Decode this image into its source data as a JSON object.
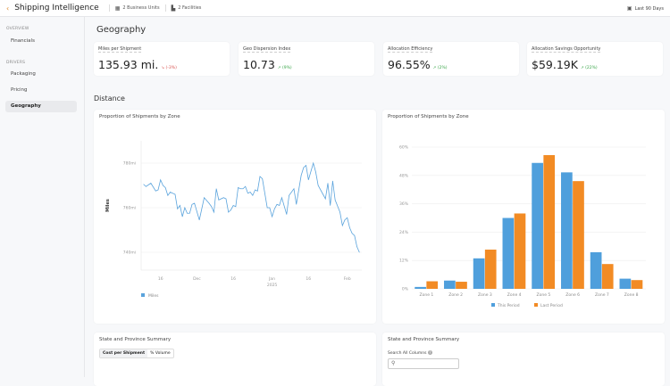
{
  "header": {
    "title": "Shipping Intelligence",
    "business_units": "2 Business Units",
    "facilities": "2 Facilities",
    "date_range": "Last 90 Days",
    "icons": {
      "back": "chevron-left-icon",
      "business": "building-icon",
      "facility": "factory-icon",
      "calendar": "calendar-icon"
    }
  },
  "sidebar": {
    "sections": [
      {
        "label": "OVERVIEW",
        "items": [
          {
            "label": "Financials"
          }
        ]
      },
      {
        "label": "DRIVERS",
        "items": [
          {
            "label": "Packaging"
          },
          {
            "label": "Pricing"
          },
          {
            "label": "Geography",
            "active": true
          }
        ]
      }
    ]
  },
  "page": {
    "title": "Geography",
    "distance_heading": "Distance"
  },
  "kpis": [
    {
      "label": "Miles per Shipment",
      "value": "135.93 mi.",
      "delta": "↘ (-3%)",
      "trend": "down",
      "color": "#d9534f"
    },
    {
      "label": "Geo Dispersion Index",
      "value": "10.73",
      "delta": "↗ (9%)",
      "trend": "up",
      "color": "#3aa64a"
    },
    {
      "label": "Allocation Efficiency",
      "value": "96.55%",
      "delta": "↗ (2%)",
      "trend": "up",
      "color": "#3aa64a"
    },
    {
      "label": "Allocation Savings Opportunity",
      "value": "$59.19K",
      "delta": "↗ (22%)",
      "trend": "up",
      "color": "#3aa64a"
    }
  ],
  "chart_data": [
    {
      "type": "line",
      "title": "Proportion of Shipments by Zone",
      "ylabel": "Miles",
      "ylim": [
        732,
        790
      ],
      "yticks": [
        "740mi",
        "760mi",
        "780mi"
      ],
      "ytick_values": [
        740,
        760,
        780
      ],
      "xticks": [
        {
          "label": "16",
          "date": "2024-11-16"
        },
        {
          "label": "Dec",
          "date": "2024-12-01"
        },
        {
          "label": "16",
          "date": "2024-12-16"
        },
        {
          "label": "Jan",
          "sub": "2025",
          "date": "2025-01-01"
        },
        {
          "label": "16",
          "date": "2025-01-16"
        },
        {
          "label": "Feb",
          "date": "2025-02-01"
        }
      ],
      "xlim": [
        "2024-11-08",
        "2025-02-07"
      ],
      "grid": true,
      "legend": "bottom-left",
      "color": "#5aa3dc",
      "series": [
        {
          "name": "Miles",
          "points": [
            [
              "2024-11-09",
              770.5
            ],
            [
              "2024-11-10",
              769.5
            ],
            [
              "2024-11-12",
              771
            ],
            [
              "2024-11-14",
              767.5
            ],
            [
              "2024-11-15",
              768
            ],
            [
              "2024-11-16",
              772.5
            ],
            [
              "2024-11-17",
              770
            ],
            [
              "2024-11-18",
              769
            ],
            [
              "2024-11-19",
              765.5
            ],
            [
              "2024-11-20",
              767
            ],
            [
              "2024-11-22",
              766
            ],
            [
              "2024-11-23",
              759.5
            ],
            [
              "2024-11-24",
              761
            ],
            [
              "2024-11-25",
              756
            ],
            [
              "2024-11-26",
              760
            ],
            [
              "2024-11-27",
              757.5
            ],
            [
              "2024-11-28",
              757.5
            ],
            [
              "2024-11-29",
              761.5
            ],
            [
              "2024-11-30",
              762
            ],
            [
              "2024-12-02",
              754.5
            ],
            [
              "2024-12-04",
              764.5
            ],
            [
              "2024-12-06",
              762
            ],
            [
              "2024-12-07",
              760.5
            ],
            [
              "2024-12-08",
              758
            ],
            [
              "2024-12-09",
              768.5
            ],
            [
              "2024-12-10",
              763.5
            ],
            [
              "2024-12-12",
              764.5
            ],
            [
              "2024-12-13",
              764
            ],
            [
              "2024-12-14",
              758
            ],
            [
              "2024-12-15",
              759
            ],
            [
              "2024-12-16",
              761
            ],
            [
              "2024-12-17",
              760.5
            ],
            [
              "2024-12-18",
              769
            ],
            [
              "2024-12-19",
              768.5
            ],
            [
              "2024-12-20",
              768.5
            ],
            [
              "2024-12-21",
              769.5
            ],
            [
              "2024-12-22",
              766.5
            ],
            [
              "2024-12-23",
              767
            ],
            [
              "2024-12-24",
              765.5
            ],
            [
              "2024-12-25",
              768
            ],
            [
              "2024-12-26",
              767.5
            ],
            [
              "2024-12-27",
              774
            ],
            [
              "2024-12-28",
              773
            ],
            [
              "2024-12-30",
              760
            ],
            [
              "2024-12-31",
              760
            ],
            [
              "2025-01-01",
              756
            ],
            [
              "2025-01-02",
              759.5
            ],
            [
              "2025-01-03",
              761.5
            ],
            [
              "2025-01-04",
              761
            ],
            [
              "2025-01-05",
              764.5
            ],
            [
              "2025-01-07",
              757
            ],
            [
              "2025-01-08",
              765.5
            ],
            [
              "2025-01-10",
              768.5
            ],
            [
              "2025-01-11",
              761.5
            ],
            [
              "2025-01-13",
              774.5
            ],
            [
              "2025-01-14",
              778
            ],
            [
              "2025-01-15",
              779
            ],
            [
              "2025-01-16",
              772.5
            ],
            [
              "2025-01-18",
              780
            ],
            [
              "2025-01-19",
              776
            ],
            [
              "2025-01-20",
              770
            ],
            [
              "2025-01-22",
              766
            ],
            [
              "2025-01-23",
              764
            ],
            [
              "2025-01-24",
              771
            ],
            [
              "2025-01-25",
              761
            ],
            [
              "2025-01-26",
              772
            ],
            [
              "2025-01-27",
              763.5
            ],
            [
              "2025-01-29",
              758
            ],
            [
              "2025-01-30",
              752
            ],
            [
              "2025-01-31",
              754.5
            ],
            [
              "2025-02-01",
              755.5
            ],
            [
              "2025-02-02",
              751
            ],
            [
              "2025-02-03",
              748.5
            ],
            [
              "2025-02-04",
              747.5
            ],
            [
              "2025-02-05",
              742.5
            ],
            [
              "2025-02-06",
              740
            ]
          ]
        }
      ]
    },
    {
      "type": "bar",
      "title": "Proportion of Shipments by Zone",
      "ylim": [
        0,
        60
      ],
      "yticks": [
        "0%",
        "12%",
        "24%",
        "36%",
        "48%",
        "60%"
      ],
      "ytick_values": [
        0,
        12,
        24,
        36,
        48,
        60
      ],
      "grid": true,
      "legend": "bottom-center",
      "categories": [
        "Zone 1",
        "Zone 2",
        "Zone 3",
        "Zone 4",
        "Zone 5",
        "Zone 6",
        "Zone 7",
        "Zone 8"
      ],
      "series": [
        {
          "name": "This Period",
          "color": "#4f9fdc",
          "values": [
            0.8,
            3.5,
            12.9,
            30,
            53.3,
            49.3,
            15.5,
            4.3
          ]
        },
        {
          "name": "Last Period",
          "color": "#f28b24",
          "values": [
            3.2,
            3.0,
            16.6,
            31.9,
            56.6,
            45.6,
            10.5,
            3.7
          ]
        }
      ]
    }
  ],
  "summary_left": {
    "title": "State and Province Summary",
    "toggle": [
      "Cost per Shipment",
      "% Volume"
    ]
  },
  "summary_right": {
    "title": "State and Province Summary",
    "search_label": "Search All Columns",
    "search_placeholder": "",
    "search_icon": "search-icon",
    "info_icon": "info-icon"
  }
}
